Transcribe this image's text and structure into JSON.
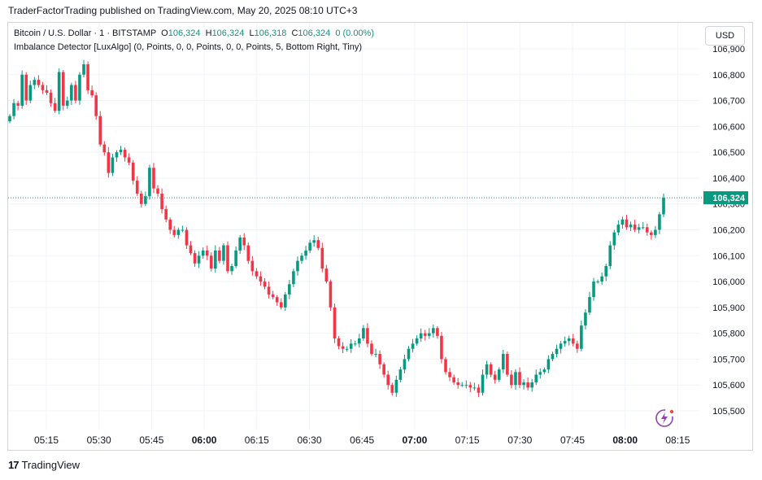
{
  "header": {
    "published": "TraderFactorTrading published on TradingView.com, May 20, 2025 08:10 UTC+3"
  },
  "legend": {
    "symbol": "Bitcoin / U.S. Dollar · 1 · BITSTAMP",
    "o_label": "O",
    "o_value": "106,324",
    "h_label": "H",
    "h_value": "106,324",
    "l_label": "L",
    "l_value": "106,318",
    "c_label": "C",
    "c_value": "106,324",
    "change": "0 (0.00%)",
    "indicator": "Imbalance Detector [LuxAlgo] (0, Points, 0, 0, Points, 0, 0, Points, 5, Bottom Right, Tiny)"
  },
  "currency_button": "USD",
  "footer": {
    "brand": "TradingView",
    "logo": "17"
  },
  "icons": {
    "lux": "lux-lightning-icon"
  },
  "colors": {
    "up": "#089981",
    "down": "#f23645",
    "accent": "#8e44ad"
  },
  "chart_data": {
    "type": "candlestick",
    "y_ticks": [
      "105,500",
      "105,600",
      "105,700",
      "105,800",
      "105,900",
      "106,000",
      "106,100",
      "106,200",
      "106,300",
      "106,400",
      "106,500",
      "106,600",
      "106,700",
      "106,800",
      "106,900"
    ],
    "x_ticks": [
      "05:15",
      "05:30",
      "05:45",
      "06:00",
      "06:15",
      "06:30",
      "06:45",
      "07:00",
      "07:15",
      "07:30",
      "07:45",
      "08:00",
      "08:15"
    ],
    "bold_x_ticks": [
      "06:00",
      "07:00",
      "08:00"
    ],
    "ylim": [
      105450,
      106920
    ],
    "last_price": "106,324",
    "close_path": [
      [
        0,
        106640
      ],
      [
        1,
        106690
      ],
      [
        2,
        106680
      ],
      [
        3,
        106800
      ],
      [
        4,
        106700
      ],
      [
        5,
        106760
      ],
      [
        6,
        106780
      ],
      [
        7,
        106760
      ],
      [
        8,
        106740
      ],
      [
        9,
        106730
      ],
      [
        10,
        106690
      ],
      [
        11,
        106660
      ],
      [
        12,
        106810
      ],
      [
        13,
        106680
      ],
      [
        14,
        106700
      ],
      [
        15,
        106760
      ],
      [
        16,
        106700
      ],
      [
        17,
        106800
      ],
      [
        18,
        106840
      ],
      [
        19,
        106740
      ],
      [
        20,
        106720
      ],
      [
        21,
        106640
      ],
      [
        22,
        106530
      ],
      [
        23,
        106500
      ],
      [
        24,
        106420
      ],
      [
        25,
        106480
      ],
      [
        26,
        106500
      ],
      [
        27,
        106510
      ],
      [
        28,
        106480
      ],
      [
        29,
        106460
      ],
      [
        30,
        106390
      ],
      [
        31,
        106340
      ],
      [
        32,
        106300
      ],
      [
        33,
        106330
      ],
      [
        34,
        106440
      ],
      [
        35,
        106360
      ],
      [
        36,
        106340
      ],
      [
        37,
        106280
      ],
      [
        38,
        106240
      ],
      [
        39,
        106200
      ],
      [
        40,
        106180
      ],
      [
        41,
        106200
      ],
      [
        42,
        106200
      ],
      [
        43,
        106140
      ],
      [
        44,
        106110
      ],
      [
        45,
        106070
      ],
      [
        46,
        106100
      ],
      [
        47,
        106120
      ],
      [
        48,
        106100
      ],
      [
        49,
        106050
      ],
      [
        50,
        106120
      ],
      [
        51,
        106080
      ],
      [
        52,
        106140
      ],
      [
        53,
        106040
      ],
      [
        54,
        106060
      ],
      [
        55,
        106120
      ],
      [
        56,
        106170
      ],
      [
        57,
        106140
      ],
      [
        58,
        106080
      ],
      [
        59,
        106040
      ],
      [
        60,
        106020
      ],
      [
        61,
        106000
      ],
      [
        62,
        105980
      ],
      [
        63,
        105950
      ],
      [
        64,
        105940
      ],
      [
        65,
        105920
      ],
      [
        66,
        105900
      ],
      [
        67,
        105950
      ],
      [
        68,
        105990
      ],
      [
        69,
        106040
      ],
      [
        70,
        106080
      ],
      [
        71,
        106100
      ],
      [
        72,
        106120
      ],
      [
        73,
        106150
      ],
      [
        74,
        106160
      ],
      [
        75,
        106130
      ],
      [
        76,
        106050
      ],
      [
        77,
        106000
      ],
      [
        78,
        105900
      ],
      [
        79,
        105780
      ],
      [
        80,
        105750
      ],
      [
        81,
        105740
      ],
      [
        82,
        105740
      ],
      [
        83,
        105760
      ],
      [
        84,
        105760
      ],
      [
        85,
        105780
      ],
      [
        86,
        105820
      ],
      [
        87,
        105760
      ],
      [
        88,
        105720
      ],
      [
        89,
        105720
      ],
      [
        90,
        105680
      ],
      [
        91,
        105640
      ],
      [
        92,
        105600
      ],
      [
        93,
        105570
      ],
      [
        94,
        105620
      ],
      [
        95,
        105660
      ],
      [
        96,
        105700
      ],
      [
        97,
        105740
      ],
      [
        98,
        105760
      ],
      [
        99,
        105780
      ],
      [
        100,
        105800
      ],
      [
        101,
        105790
      ],
      [
        102,
        105800
      ],
      [
        103,
        105820
      ],
      [
        104,
        105790
      ],
      [
        105,
        105700
      ],
      [
        106,
        105650
      ],
      [
        107,
        105630
      ],
      [
        108,
        105610
      ],
      [
        109,
        105600
      ],
      [
        110,
        105600
      ],
      [
        111,
        105600
      ],
      [
        112,
        105590
      ],
      [
        113,
        105590
      ],
      [
        114,
        105570
      ],
      [
        115,
        105640
      ],
      [
        116,
        105680
      ],
      [
        117,
        105640
      ],
      [
        118,
        105620
      ],
      [
        119,
        105660
      ],
      [
        120,
        105720
      ],
      [
        121,
        105640
      ],
      [
        122,
        105600
      ],
      [
        123,
        105650
      ],
      [
        124,
        105600
      ],
      [
        125,
        105610
      ],
      [
        126,
        105590
      ],
      [
        127,
        105610
      ],
      [
        128,
        105640
      ],
      [
        129,
        105650
      ],
      [
        130,
        105660
      ],
      [
        131,
        105700
      ],
      [
        132,
        105720
      ],
      [
        133,
        105740
      ],
      [
        134,
        105760
      ],
      [
        135,
        105770
      ],
      [
        136,
        105780
      ],
      [
        137,
        105760
      ],
      [
        138,
        105740
      ],
      [
        139,
        105830
      ],
      [
        140,
        105880
      ],
      [
        141,
        105940
      ],
      [
        142,
        106000
      ],
      [
        143,
        106000
      ],
      [
        144,
        106020
      ],
      [
        145,
        106060
      ],
      [
        146,
        106140
      ],
      [
        147,
        106190
      ],
      [
        148,
        106220
      ],
      [
        149,
        106240
      ],
      [
        150,
        106210
      ],
      [
        151,
        106220
      ],
      [
        152,
        106200
      ],
      [
        153,
        106210
      ],
      [
        154,
        106210
      ],
      [
        155,
        106190
      ],
      [
        156,
        106180
      ],
      [
        157,
        106200
      ],
      [
        158,
        106260
      ],
      [
        159,
        106324
      ]
    ]
  }
}
